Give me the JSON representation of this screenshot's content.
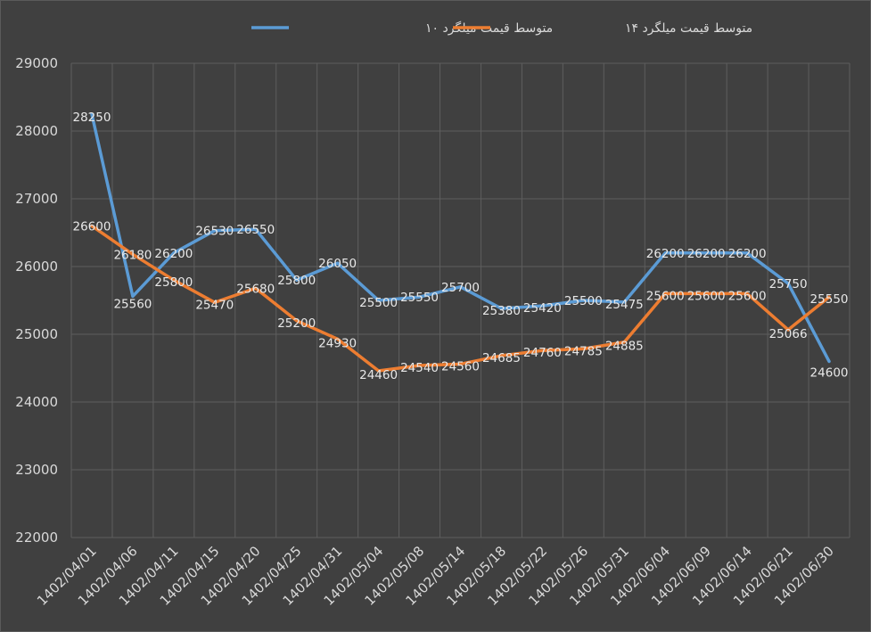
{
  "chart_data": {
    "type": "line",
    "categories": [
      "1402/04/01",
      "1402/04/06",
      "1402/04/11",
      "1402/04/15",
      "1402/04/20",
      "1402/04/25",
      "1402/04/31",
      "1402/05/04",
      "1402/05/08",
      "1402/05/14",
      "1402/05/18",
      "1402/05/22",
      "1402/05/26",
      "1402/05/31",
      "1402/06/04",
      "1402/06/09",
      "1402/06/14",
      "1402/06/21",
      "1402/06/30"
    ],
    "series": [
      {
        "name": "متوسط قیمت میلگرد ۱۰",
        "color": "#5b9bd5",
        "values": [
          28250,
          25560,
          26200,
          26530,
          26550,
          25800,
          26050,
          25500,
          25550,
          25700,
          25380,
          25420,
          25500,
          25475,
          26200,
          26200,
          26200,
          25750,
          24600
        ]
      },
      {
        "name": "متوسط قیمت میلگرد ۱۴",
        "color": "#ed7d31",
        "values": [
          26600,
          26180,
          25800,
          25470,
          25680,
          25200,
          24930,
          24460,
          24540,
          24560,
          24685,
          24760,
          24785,
          24885,
          25600,
          25600,
          25600,
          25066,
          25550
        ]
      }
    ],
    "yticks": [
      "29000",
      "28000",
      "27000",
      "26000",
      "25000",
      "24000",
      "23000",
      "22000"
    ],
    "ylim": [
      22000,
      29000
    ],
    "grid": true,
    "legend_position": "top"
  }
}
